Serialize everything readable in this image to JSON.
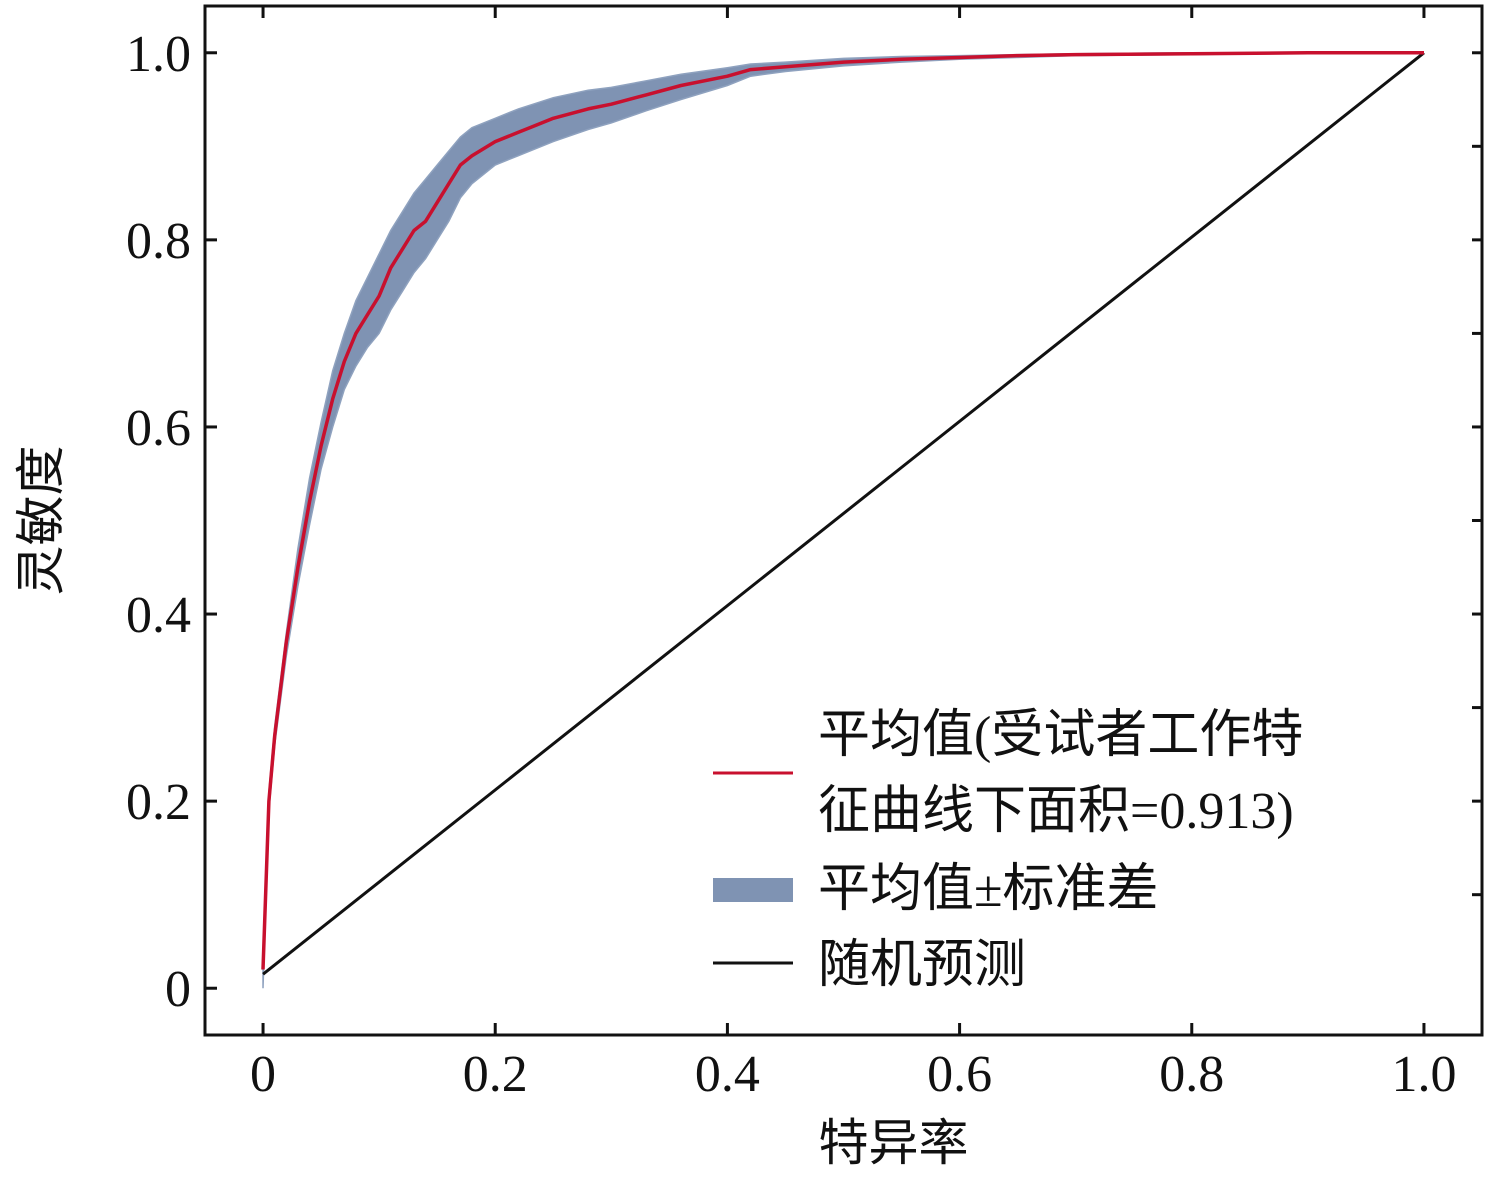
{
  "chart_data": {
    "type": "line",
    "xlabel": "特异率",
    "ylabel": "灵敏度",
    "xlim": [
      -0.05,
      1.05
    ],
    "ylim": [
      -0.05,
      1.05
    ],
    "x_ticks": [
      "0",
      "0.2",
      "0.4",
      "0.6",
      "0.8",
      "1.0"
    ],
    "x_tick_values": [
      0,
      0.2,
      0.4,
      0.6,
      0.8,
      1.0
    ],
    "y_ticks": [
      "0",
      "0.2",
      "0.4",
      "0.6",
      "0.8",
      "1.0"
    ],
    "y_tick_values": [
      0,
      0.2,
      0.4,
      0.6,
      0.8,
      1.0
    ],
    "grid": false,
    "legend_position": "bottom-right",
    "legend": [
      "平均值(受试者工作特征曲线下面积=0.913)",
      "平均值±标准差",
      "随机预测"
    ],
    "legend_lines": [
      [
        "平均值(受试者工作特",
        "征曲线下面积=0.913)"
      ],
      [
        "平均值±标准差"
      ],
      [
        "随机预测"
      ]
    ],
    "series": [
      {
        "name": "平均值(受试者工作特征曲线下面积=0.913)",
        "color": "#c8102e",
        "x": [
          0,
          0.005,
          0.01,
          0.02,
          0.03,
          0.04,
          0.05,
          0.06,
          0.07,
          0.08,
          0.09,
          0.1,
          0.11,
          0.12,
          0.13,
          0.14,
          0.15,
          0.16,
          0.17,
          0.18,
          0.2,
          0.22,
          0.25,
          0.28,
          0.3,
          0.33,
          0.36,
          0.4,
          0.42,
          0.45,
          0.5,
          0.55,
          0.6,
          0.65,
          0.7,
          0.8,
          0.9,
          1.0
        ],
        "y": [
          0.02,
          0.2,
          0.27,
          0.37,
          0.45,
          0.52,
          0.58,
          0.63,
          0.67,
          0.7,
          0.72,
          0.74,
          0.77,
          0.79,
          0.81,
          0.82,
          0.84,
          0.86,
          0.88,
          0.89,
          0.905,
          0.915,
          0.93,
          0.94,
          0.945,
          0.955,
          0.965,
          0.975,
          0.982,
          0.985,
          0.99,
          0.993,
          0.995,
          0.997,
          0.998,
          0.999,
          1.0,
          1.0
        ]
      },
      {
        "name": "平均值±标准差",
        "color": "#7f93b3",
        "x": [
          0,
          0.005,
          0.01,
          0.02,
          0.03,
          0.04,
          0.05,
          0.06,
          0.07,
          0.08,
          0.09,
          0.1,
          0.11,
          0.12,
          0.13,
          0.14,
          0.15,
          0.16,
          0.17,
          0.18,
          0.2,
          0.22,
          0.25,
          0.28,
          0.3,
          0.33,
          0.36,
          0.4,
          0.42,
          0.45,
          0.5,
          0.55,
          0.6,
          0.65,
          0.7,
          0.8,
          0.9,
          1.0
        ],
        "upper": [
          0.03,
          0.21,
          0.28,
          0.38,
          0.47,
          0.545,
          0.605,
          0.66,
          0.7,
          0.735,
          0.76,
          0.785,
          0.81,
          0.83,
          0.85,
          0.865,
          0.88,
          0.895,
          0.91,
          0.92,
          0.93,
          0.94,
          0.952,
          0.96,
          0.963,
          0.97,
          0.977,
          0.984,
          0.988,
          0.99,
          0.994,
          0.996,
          0.997,
          0.998,
          0.999,
          1.0,
          1.0,
          1.0
        ],
        "lower": [
          0.0,
          0.19,
          0.26,
          0.355,
          0.43,
          0.495,
          0.555,
          0.6,
          0.64,
          0.665,
          0.685,
          0.7,
          0.725,
          0.745,
          0.765,
          0.78,
          0.8,
          0.82,
          0.845,
          0.86,
          0.88,
          0.89,
          0.905,
          0.918,
          0.925,
          0.938,
          0.95,
          0.965,
          0.975,
          0.98,
          0.986,
          0.99,
          0.993,
          0.995,
          0.997,
          0.998,
          1.0,
          1.0
        ]
      },
      {
        "name": "随机预测",
        "color": "#111111",
        "x": [
          0,
          1.0
        ],
        "y": [
          0.015,
          1.0
        ]
      }
    ]
  }
}
